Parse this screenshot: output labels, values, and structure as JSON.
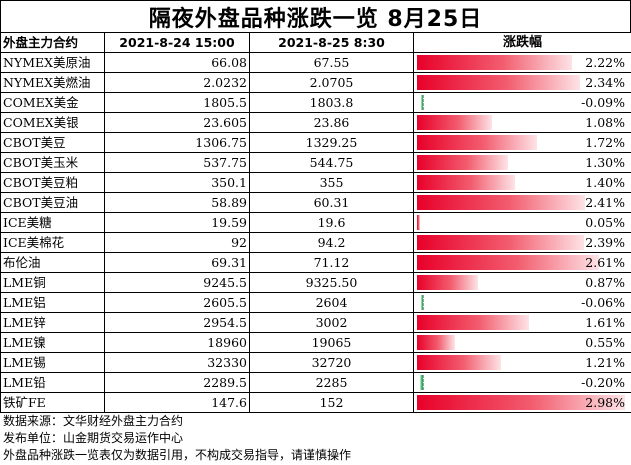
{
  "title": "隔夜外盘品种涨跌一览 8月25日",
  "table": {
    "headers": {
      "name": "外盘主力合约",
      "prev": "2021-8-24 15:00",
      "curr": "2021-8-25 8:30",
      "change": "涨跌幅"
    },
    "rows": [
      {
        "name": "NYMEX美原油",
        "prev": "66.08",
        "curr": "67.55",
        "change_pct": 2.22,
        "change": "2.22%"
      },
      {
        "name": "NYMEX美燃油",
        "prev": "2.0232",
        "curr": "2.0705",
        "change_pct": 2.34,
        "change": "2.34%"
      },
      {
        "name": "COMEX美金",
        "prev": "1805.5",
        "curr": "1803.8",
        "change_pct": -0.09,
        "change": "-0.09%"
      },
      {
        "name": "COMEX美银",
        "prev": "23.605",
        "curr": "23.86",
        "change_pct": 1.08,
        "change": "1.08%"
      },
      {
        "name": "CBOT美豆",
        "prev": "1306.75",
        "curr": "1329.25",
        "change_pct": 1.72,
        "change": "1.72%"
      },
      {
        "name": "CBOT美玉米",
        "prev": "537.75",
        "curr": "544.75",
        "change_pct": 1.3,
        "change": "1.30%"
      },
      {
        "name": "CBOT美豆粕",
        "prev": "350.1",
        "curr": "355",
        "change_pct": 1.4,
        "change": "1.40%"
      },
      {
        "name": "CBOT美豆油",
        "prev": "58.89",
        "curr": "60.31",
        "change_pct": 2.41,
        "change": "2.41%"
      },
      {
        "name": "ICE美糖",
        "prev": "19.59",
        "curr": "19.6",
        "change_pct": 0.05,
        "change": "0.05%"
      },
      {
        "name": "ICE美棉花",
        "prev": "92",
        "curr": "94.2",
        "change_pct": 2.39,
        "change": "2.39%"
      },
      {
        "name": "布伦油",
        "prev": "69.31",
        "curr": "71.12",
        "change_pct": 2.61,
        "change": "2.61%"
      },
      {
        "name": "LME铜",
        "prev": "9245.5",
        "curr": "9325.50",
        "change_pct": 0.87,
        "change": "0.87%"
      },
      {
        "name": "LME铝",
        "prev": "2605.5",
        "curr": "2604",
        "change_pct": -0.06,
        "change": "-0.06%"
      },
      {
        "name": "LME锌",
        "prev": "2954.5",
        "curr": "3002",
        "change_pct": 1.61,
        "change": "1.61%"
      },
      {
        "name": "LME镍",
        "prev": "18960",
        "curr": "19065",
        "change_pct": 0.55,
        "change": "0.55%"
      },
      {
        "name": "LME锡",
        "prev": "32330",
        "curr": "32720",
        "change_pct": 1.21,
        "change": "1.21%"
      },
      {
        "name": "LME铅",
        "prev": "2289.5",
        "curr": "2285",
        "change_pct": -0.2,
        "change": "-0.20%"
      },
      {
        "name": "铁矿FE",
        "prev": "147.6",
        "curr": "152",
        "change_pct": 2.98,
        "change": "2.98%"
      }
    ]
  },
  "colors": {
    "up": "#e8002a",
    "down": "#10a050"
  },
  "footer": {
    "source": "数据来源：文华财经外盘主力合约",
    "publisher": "发布单位：山金期货交易运作中心",
    "disclaimer": "外盘品种涨跌一览表仅为数据引用，不构成交易指导，请谨慎操作"
  }
}
